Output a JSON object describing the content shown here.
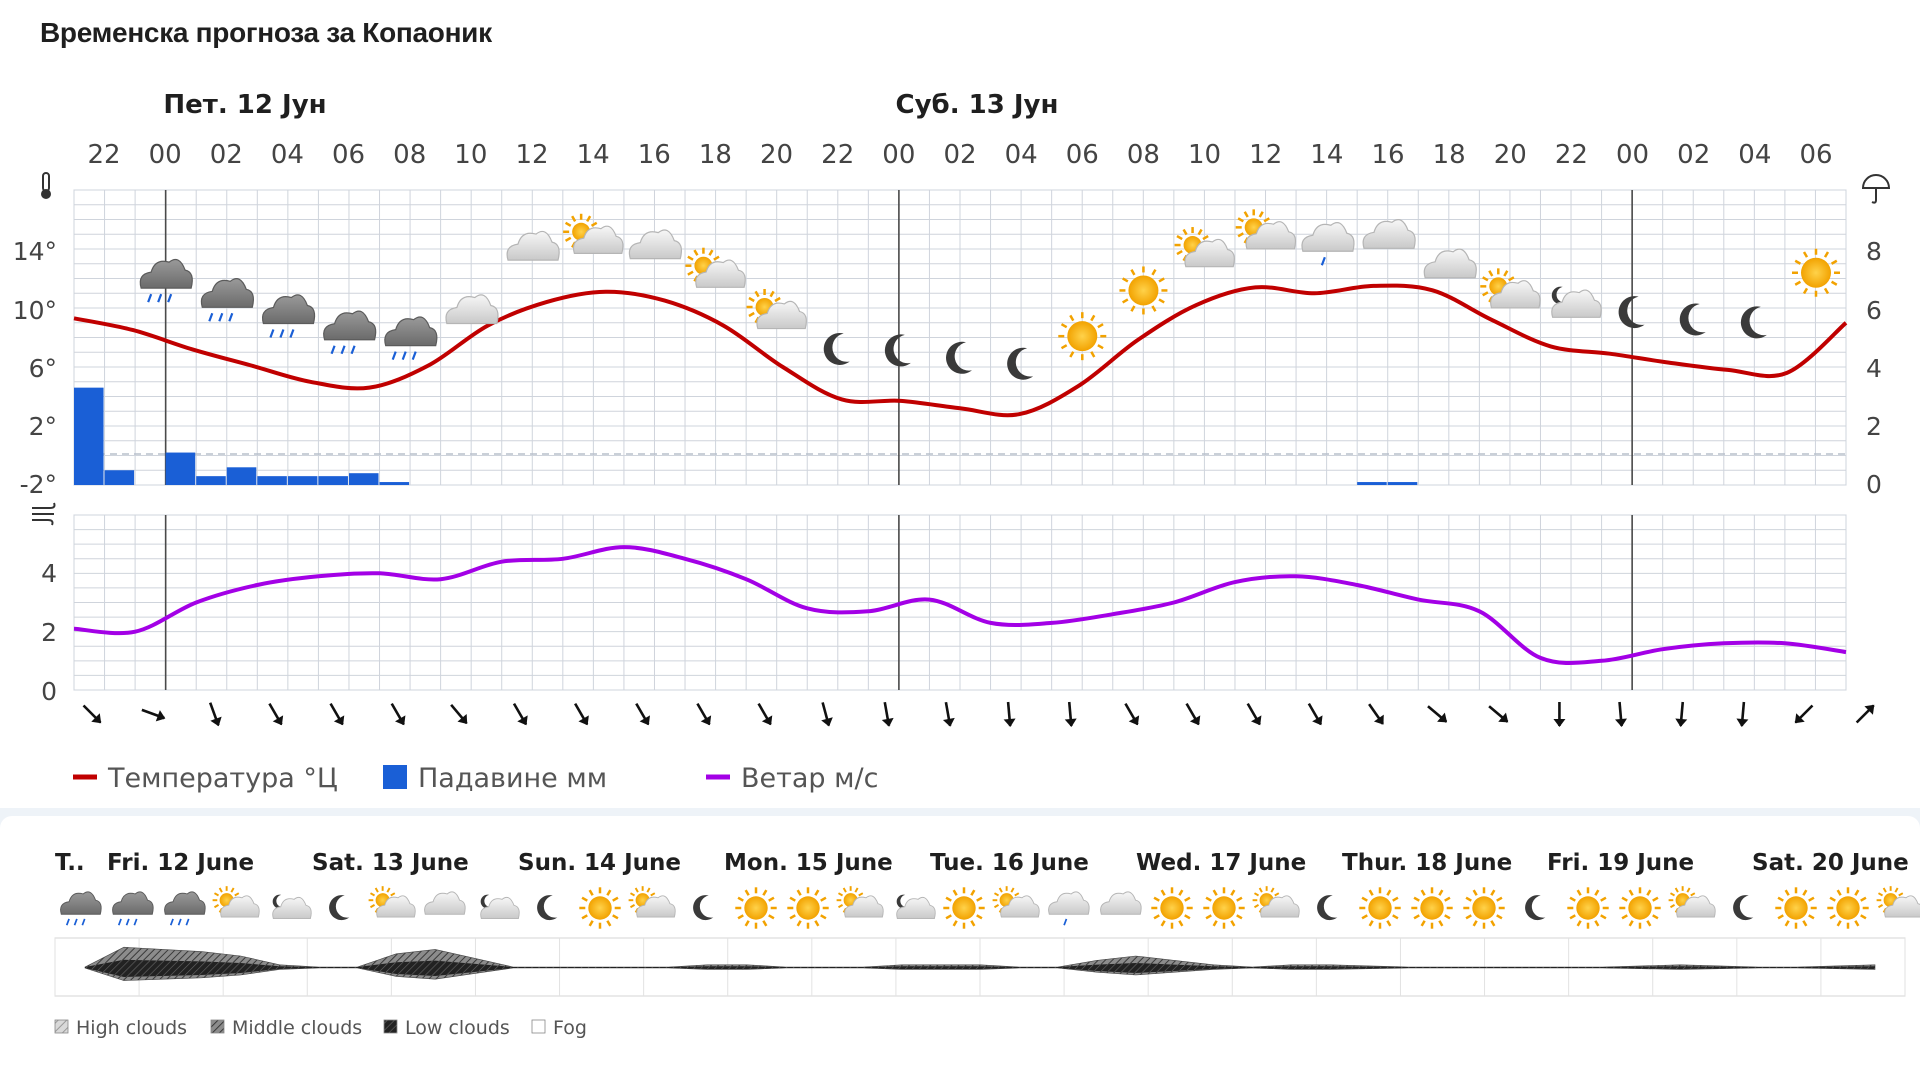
{
  "title": "Временска прогноза за Копаоник",
  "chart_data": [
    {
      "type": "line",
      "name": "hourly_meteogram",
      "day_headers": [
        "Пет. 12 Јун",
        "Суб. 13 Јун"
      ],
      "x": [
        "22",
        "00",
        "02",
        "04",
        "06",
        "08",
        "10",
        "12",
        "14",
        "16",
        "18",
        "20",
        "22",
        "00",
        "02",
        "04",
        "06",
        "08",
        "10",
        "12",
        "14",
        "16",
        "18",
        "20",
        "22",
        "00",
        "02",
        "04",
        "06"
      ],
      "weather_icons": [
        "",
        "rain",
        "rain",
        "rain",
        "rain",
        "rain",
        "cloudy",
        "cloudy",
        "partly-cloudy",
        "cloudy",
        "partly-cloudy",
        "partly-cloudy",
        "moon",
        "moon",
        "moon",
        "moon",
        "sun",
        "sun",
        "partly-cloudy",
        "partly-cloudy",
        "cloudy-rain",
        "cloudy",
        "cloudy",
        "partly-cloudy",
        "partly-cloudy-night",
        "moon",
        "moon",
        "moon",
        "sun"
      ],
      "temperature": {
        "label": "Температура °Ц",
        "unit": "°C",
        "color": "#c00000",
        "y_ticks": [
          "14°",
          "10°",
          "6°",
          "2°",
          "-2°"
        ],
        "ylim": [
          -2,
          18
        ],
        "values": [
          9.3,
          8.5,
          7.2,
          6.1,
          5.0,
          4.6,
          6.1,
          8.8,
          10.4,
          11.1,
          10.5,
          8.8,
          6.0,
          3.8,
          3.7,
          3.2,
          2.8,
          4.7,
          7.8,
          10.2,
          11.4,
          11.0,
          11.5,
          11.2,
          9.2,
          7.4,
          6.9,
          6.3,
          5.8,
          5.6,
          9.0
        ]
      },
      "precipitation": {
        "label": "Падавине мм",
        "unit": "мм",
        "color": "#1a5fd6",
        "y_ticks": [
          "8",
          "6",
          "4",
          "2",
          "0"
        ],
        "ylim": [
          0,
          10
        ],
        "values": [
          3.3,
          0.5,
          0,
          1.1,
          0.3,
          0.6,
          0.3,
          0.3,
          0.3,
          0.4,
          0.1,
          0,
          0,
          0,
          0,
          0,
          0,
          0,
          0,
          0,
          0,
          0,
          0,
          0,
          0,
          0,
          0,
          0,
          0,
          0,
          0,
          0,
          0,
          0,
          0,
          0,
          0,
          0,
          0,
          0,
          0,
          0,
          0.1,
          0.1,
          0,
          0,
          0,
          0,
          0,
          0,
          0,
          0,
          0,
          0,
          0,
          0,
          0,
          0
        ]
      },
      "wind": {
        "label": "Ветар м/с",
        "unit": "м/с",
        "color": "#a300e6",
        "y_ticks": [
          "4",
          "2",
          "0"
        ],
        "ylim": [
          0,
          6
        ],
        "values": [
          2.1,
          2.0,
          3.0,
          3.6,
          3.9,
          4.0,
          3.8,
          4.4,
          4.5,
          4.9,
          4.5,
          3.8,
          2.8,
          2.7,
          3.1,
          2.3,
          2.3,
          2.6,
          3.0,
          3.7,
          3.9,
          3.6,
          3.1,
          2.7,
          1.1,
          1.0,
          1.4,
          1.6,
          1.6,
          1.3
        ],
        "directions_deg": [
          315,
          290,
          340,
          330,
          330,
          330,
          320,
          330,
          330,
          330,
          330,
          330,
          345,
          350,
          350,
          355,
          355,
          330,
          330,
          330,
          330,
          325,
          310,
          310,
          0,
          355,
          5,
          5,
          45,
          225
        ]
      },
      "legend": [
        {
          "label": "Температура °Ц",
          "color": "#c00000",
          "kind": "line"
        },
        {
          "label": "Падавине мм",
          "color": "#1a5fd6",
          "kind": "box"
        },
        {
          "label": "Ветар м/с",
          "color": "#a300e6",
          "kind": "line"
        }
      ]
    },
    {
      "type": "area",
      "name": "daily_cloud_strip",
      "days": [
        "T..",
        "Fri. 12 June",
        "Sat. 13 June",
        "Sun. 14 June",
        "Mon. 15 June",
        "Tue. 16 June",
        "Wed. 17 June",
        "Thur. 18 June",
        "Fri. 19 June",
        "Sat. 20 June"
      ],
      "icons": [
        "rain",
        "rain",
        "rain",
        "partly-cloudy",
        "partly-cloudy-night",
        "moon",
        "partly-cloudy",
        "cloudy",
        "partly-cloudy-night",
        "moon",
        "sun",
        "partly-cloudy",
        "moon",
        "sun",
        "sun",
        "partly-cloudy",
        "partly-cloudy-night",
        "sun",
        "partly-cloudy",
        "cloudy-rain",
        "cloudy",
        "sun",
        "sun",
        "partly-cloudy",
        "moon",
        "sun",
        "sun",
        "sun",
        "moon",
        "sun",
        "sun",
        "partly-cloudy",
        "moon",
        "sun",
        "sun",
        "partly-cloudy"
      ],
      "cloud_cover": [
        0,
        0.9,
        0.8,
        0.7,
        0.5,
        0.1,
        0,
        0,
        0.6,
        0.8,
        0.4,
        0,
        0,
        0,
        0,
        0,
        0.1,
        0.1,
        0,
        0,
        0,
        0.1,
        0.1,
        0.1,
        0,
        0,
        0.3,
        0.5,
        0.3,
        0.1,
        0,
        0.1,
        0.1,
        0.05,
        0,
        0,
        0,
        0,
        0,
        0,
        0.05,
        0.1,
        0.05,
        0,
        0,
        0.05,
        0.1
      ],
      "legend": [
        "High clouds",
        "Middle clouds",
        "Low clouds",
        "Fog"
      ]
    }
  ]
}
